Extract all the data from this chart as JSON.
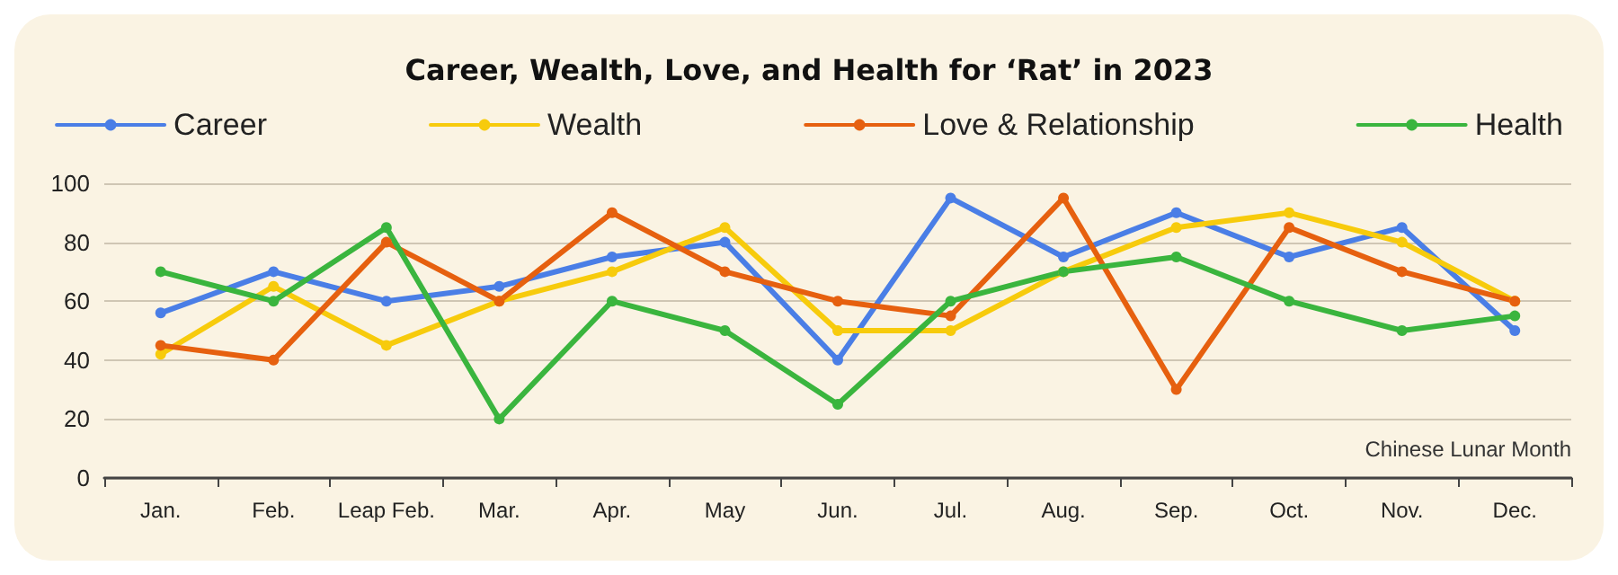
{
  "chart_data": {
    "type": "line",
    "title": "Career, Wealth, Love, and Health for ‘Rat’ in 2023",
    "xlabel": "Chinese Lunar Month",
    "categories": [
      "Jan.",
      "Feb.",
      "Leap Feb.",
      "Mar.",
      "Apr.",
      "May",
      "Jun.",
      "Jul.",
      "Aug.",
      "Sep.",
      "Oct.",
      "Nov.",
      "Dec."
    ],
    "series": [
      {
        "name": "Career",
        "color": "#4a7ee6",
        "values": [
          56,
          70,
          60,
          65,
          75,
          80,
          40,
          95,
          75,
          90,
          75,
          85,
          50
        ]
      },
      {
        "name": "Wealth",
        "color": "#f7cb0c",
        "values": [
          42,
          65,
          45,
          60,
          70,
          85,
          50,
          50,
          70,
          85,
          90,
          80,
          60
        ]
      },
      {
        "name": "Love & Relationship",
        "color": "#e6600f",
        "values": [
          45,
          40,
          80,
          60,
          90,
          70,
          60,
          55,
          95,
          30,
          85,
          70,
          60
        ]
      },
      {
        "name": "Health",
        "color": "#3ab53e",
        "values": [
          70,
          60,
          85,
          20,
          60,
          50,
          25,
          60,
          70,
          75,
          60,
          50,
          55
        ]
      }
    ],
    "ylim": [
      0,
      100
    ],
    "yticks": [
      0,
      20,
      40,
      60,
      80,
      100
    ],
    "grid": "y",
    "legend": "top",
    "marker": "circle",
    "line_style": "solid"
  }
}
